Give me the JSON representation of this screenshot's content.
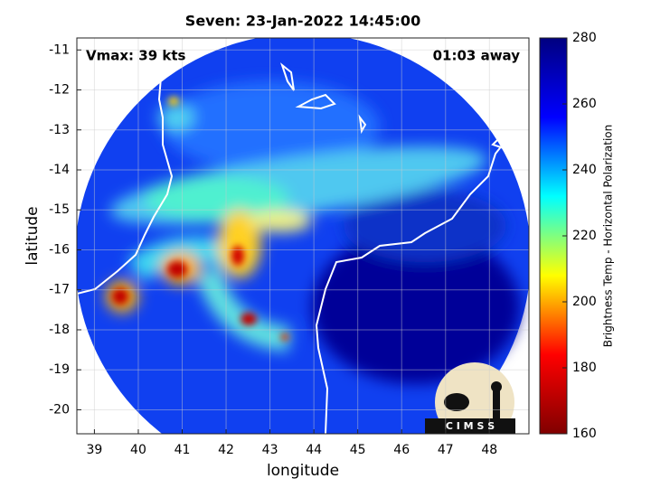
{
  "chart_data": {
    "type": "image",
    "title": "Seven: 23-Jan-2022 14:45:00",
    "xlabel": "longitude",
    "ylabel": "latitude",
    "annotations": [
      "Vmax: 39 kts",
      "01:03 away"
    ],
    "xlim": [
      38.6,
      48.9
    ],
    "ylim": [
      -20.6,
      -10.7
    ],
    "xticks": [
      39,
      40,
      41,
      42,
      43,
      44,
      45,
      46,
      47,
      48
    ],
    "yticks": [
      -11,
      -12,
      -13,
      -14,
      -15,
      -16,
      -17,
      -18,
      -19,
      -20
    ],
    "grid": true,
    "colorbar": {
      "label": "Brightness Temp - Horizontal Polarization",
      "clim": [
        160,
        280
      ],
      "ticks": [
        160,
        180,
        200,
        220,
        240,
        260,
        280
      ],
      "colormap": "jet"
    },
    "logo": "C I M S S"
  }
}
